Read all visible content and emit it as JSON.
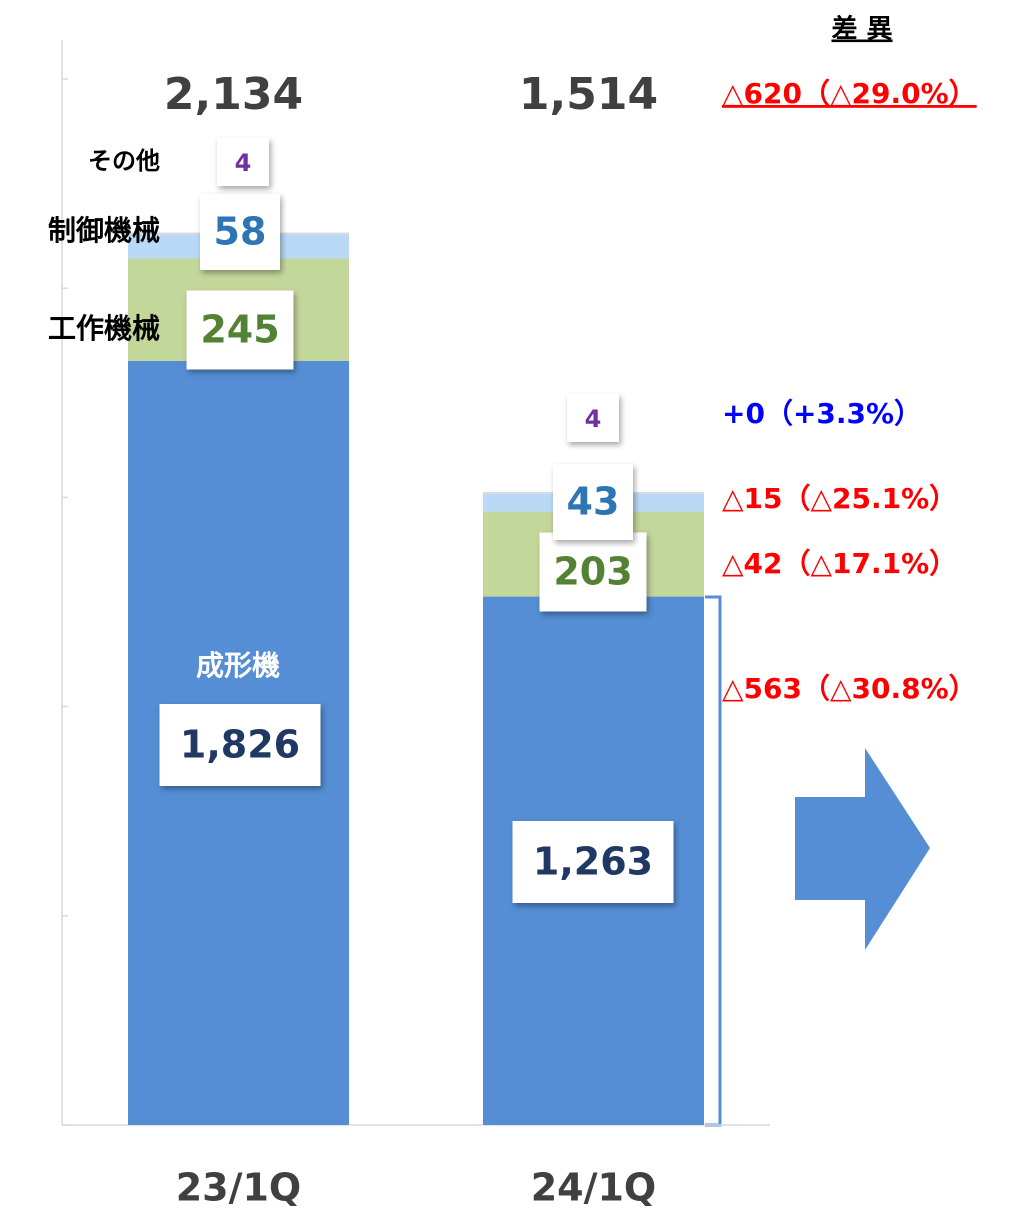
{
  "chart_data": {
    "type": "bar",
    "stacked": true,
    "categories": [
      "23/1Q",
      "24/1Q"
    ],
    "ylim": [
      0,
      2500
    ],
    "yticks": [
      0,
      500,
      1000,
      1500,
      2000,
      2500
    ],
    "series": [
      {
        "name": "成形機",
        "color": "#558ed5",
        "label_color": "#1f3864",
        "values": [
          1826,
          1263
        ],
        "value_labels": [
          "1,826",
          "1,263"
        ],
        "change": "△563（△30.8%）",
        "change_color": "#ff0000"
      },
      {
        "name": "工作機械",
        "color": "#c4d79b",
        "label_color": "#548235",
        "values": [
          245,
          203
        ],
        "change": "△42（△17.1%）",
        "change_color": "#ff0000"
      },
      {
        "name": "制御機械",
        "color": "#b9d9f7",
        "label_color": "#2e75b6",
        "values": [
          58,
          43
        ],
        "change": "△15（△25.1%）",
        "change_color": "#ff0000"
      },
      {
        "name": "その他",
        "color": "#d9d9d9",
        "label_color": "#7030a0",
        "values": [
          4,
          4
        ],
        "change": "+0（+3.3%）",
        "change_color": "#0000ff"
      }
    ],
    "totals": {
      "values": [
        2134,
        1514
      ],
      "value_labels": [
        "2,134",
        "1,514"
      ],
      "color": "#404040",
      "change": "△620（△29.0%）",
      "change_color": "#ff0000"
    },
    "change_header": "差 異"
  }
}
